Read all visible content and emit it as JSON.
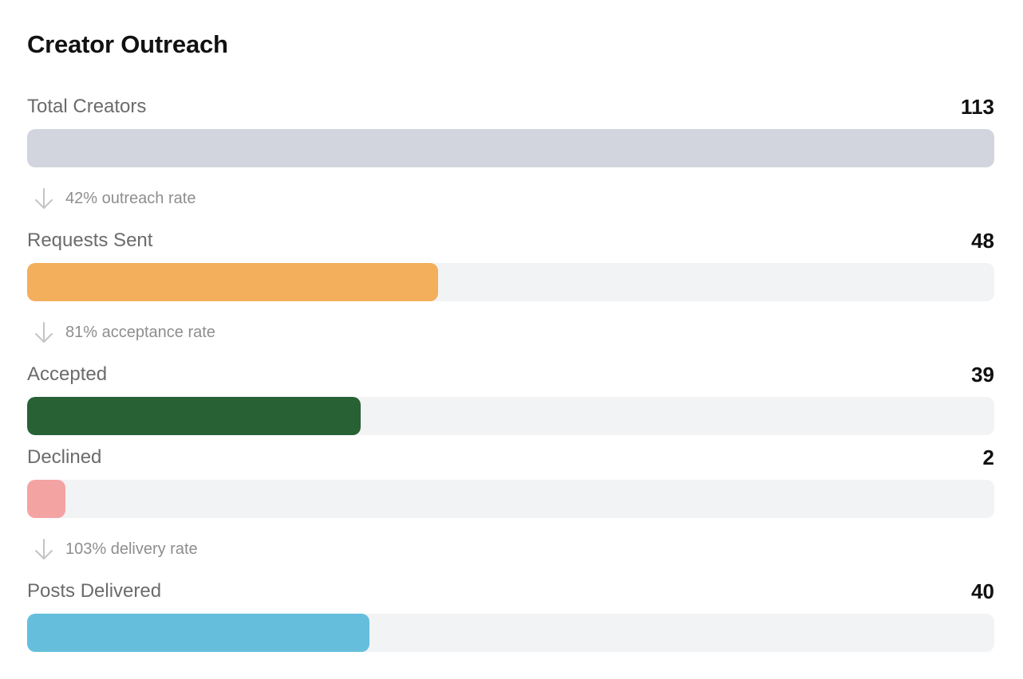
{
  "title": "Creator Outreach",
  "chart_data": {
    "type": "bar",
    "orientation": "horizontal",
    "title": "Creator Outreach",
    "max": 113,
    "categories": [
      "Total Creators",
      "Requests Sent",
      "Accepted",
      "Declined",
      "Posts Delivered"
    ],
    "values": [
      113,
      48,
      39,
      2,
      40
    ],
    "series": [
      {
        "label": "Total Creators",
        "value": 113,
        "display": "113",
        "color": "#d2d5dd"
      },
      {
        "label": "Requests Sent",
        "value": 48,
        "display": "48",
        "color": "#f3af5c"
      },
      {
        "label": "Accepted",
        "value": 39,
        "display": "39",
        "color": "#286134"
      },
      {
        "label": "Declined",
        "value": 2,
        "display": "2",
        "color": "#f4a3a3"
      },
      {
        "label": "Posts Delivered",
        "value": 40,
        "display": "40",
        "color": "#65bfdc"
      }
    ],
    "rates": [
      {
        "text": "42% outreach rate"
      },
      {
        "text": "81% acceptance rate"
      },
      {
        "text": "103% delivery rate"
      }
    ]
  },
  "icons": {
    "rate_arrow": "arrow-down-icon"
  }
}
